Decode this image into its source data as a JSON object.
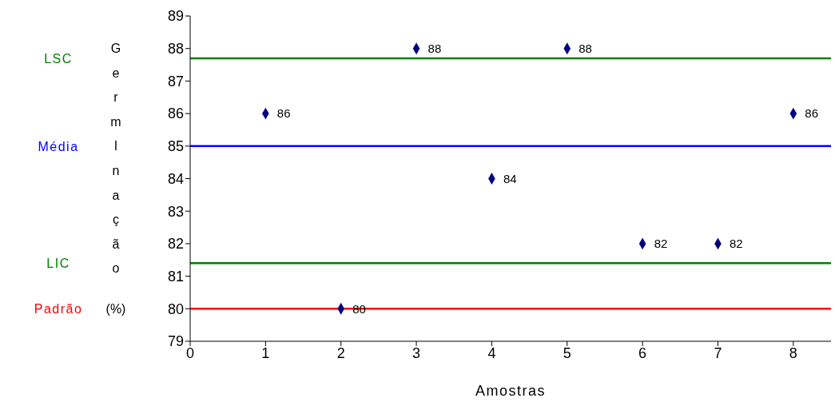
{
  "chart_data": {
    "type": "scatter",
    "xlabel": "Amostras",
    "ylabel": "GermInação (%)",
    "x": [
      1,
      2,
      3,
      4,
      5,
      6,
      7,
      8
    ],
    "series": [
      {
        "color": "#000080",
        "values": [
          86,
          80,
          88,
          84,
          88,
          82,
          82,
          86
        ]
      }
    ],
    "data_labels": true,
    "marker": "diamond",
    "xlim": [
      0,
      8.5
    ],
    "xticks": [
      0,
      1,
      2,
      3,
      4,
      5,
      6,
      7,
      8
    ],
    "ylim": [
      79,
      89
    ],
    "yticks": [
      79,
      80,
      81,
      82,
      83,
      84,
      85,
      86,
      87,
      88,
      89
    ],
    "ref_lines": [
      {
        "axis": "y",
        "value": 87.7,
        "label": "LSC",
        "color": "#008000"
      },
      {
        "axis": "y",
        "value": 85,
        "label": "Média",
        "color": "#0000ff"
      },
      {
        "axis": "y",
        "value": 81.4,
        "label": "LIC",
        "color": "#008000"
      },
      {
        "axis": "y",
        "value": 80,
        "label": "Padrão",
        "color": "#ff0000"
      }
    ]
  }
}
